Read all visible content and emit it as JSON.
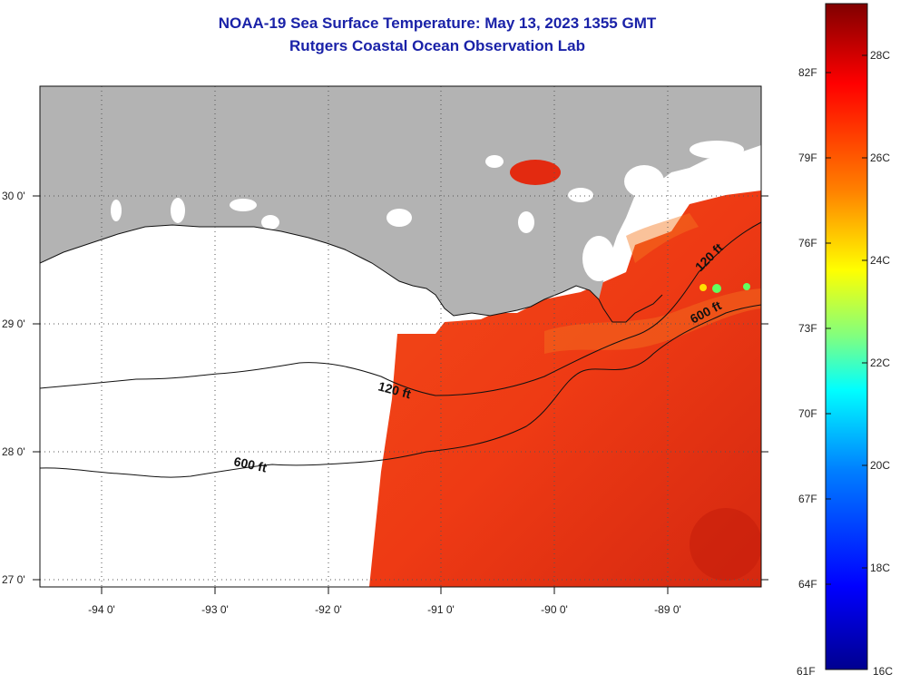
{
  "title": {
    "line1": "NOAA-19 Sea Surface Temperature:  May 13, 2023 1355 GMT",
    "line2": "Rutgers Coastal Ocean Observation Lab"
  },
  "axes": {
    "longitude_labels": [
      "-94 0'",
      "-93 0'",
      "-92 0'",
      "-91 0'",
      "-90 0'",
      "-89 0'"
    ],
    "latitude_labels": [
      "30 0'",
      "29 0'",
      "28 0'",
      "27 0'"
    ],
    "lon_range": [
      -94.55,
      -88.25
    ],
    "lat_range": [
      26.95,
      30.85
    ],
    "grid": "dotted"
  },
  "contours": [
    {
      "label": "120 ft",
      "depth_ft": 120
    },
    {
      "label": "600 ft",
      "depth_ft": 600
    },
    {
      "label": "120 ft",
      "depth_ft": 120
    },
    {
      "label": "600 ft",
      "depth_ft": 600
    }
  ],
  "colorbar": {
    "fahrenheit_labels": [
      "82F",
      "79F",
      "76F",
      "73F",
      "70F",
      "67F",
      "64F",
      "61F"
    ],
    "celsius_labels": [
      "28C",
      "26C",
      "24C",
      "22C",
      "20C",
      "18C",
      "16C"
    ],
    "range_c": [
      16,
      29
    ],
    "colors": [
      "#00008f",
      "#0000ff",
      "#0080ff",
      "#00ffff",
      "#80ff80",
      "#ffff00",
      "#ff8000",
      "#ff0000",
      "#800000"
    ]
  },
  "colors": {
    "land": "#b3b3b3",
    "sea_warm": "#f03a16",
    "no_data": "#ffffff",
    "title": "#1a22a8"
  }
}
